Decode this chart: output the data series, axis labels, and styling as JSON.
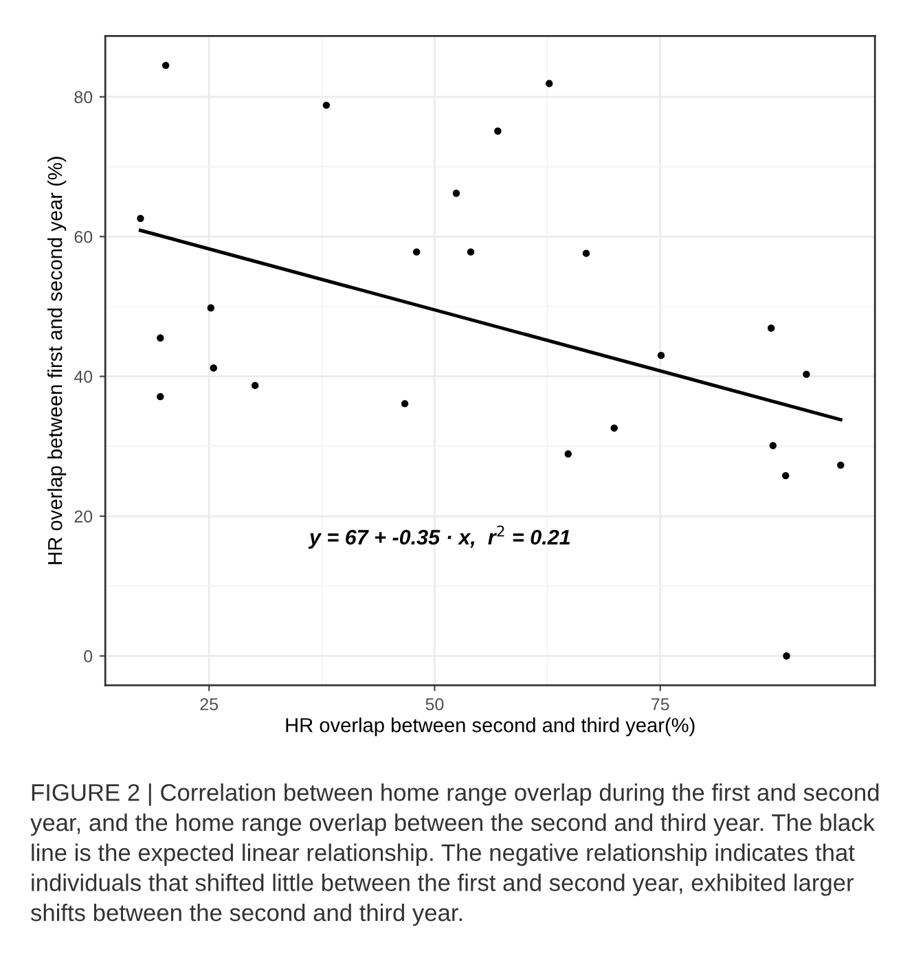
{
  "chart_data": {
    "type": "scatter",
    "xlabel": "HR overlap between second and third year(%)",
    "ylabel": "HR overlap between first and second year (%)",
    "series": [
      {
        "marker": "circle",
        "color": "#000000",
        "x": [
          20.2,
          38.0,
          17.4,
          52.4,
          48.0,
          25.2,
          19.6,
          25.5,
          19.6,
          30.1,
          46.7,
          62.7,
          57.0,
          54.0,
          66.8,
          87.3,
          75.1,
          91.2,
          69.9,
          64.8,
          87.5,
          88.9,
          95.0,
          89.0
        ],
        "values": [
          84.5,
          78.8,
          62.6,
          66.2,
          57.8,
          49.8,
          45.5,
          41.2,
          37.1,
          38.7,
          36.1,
          81.9,
          75.1,
          57.8,
          57.6,
          46.9,
          43.0,
          40.3,
          32.6,
          28.9,
          30.1,
          25.8,
          27.3,
          0
        ]
      },
      {
        "type": "line",
        "color": "#000000",
        "x": [
          17.4,
          95.0
        ],
        "values": [
          60.9,
          33.8
        ]
      }
    ],
    "xlim": [
      13.5,
      98.8
    ],
    "ylim": [
      -4.2,
      88.7
    ],
    "xticks": [
      25,
      50,
      75
    ],
    "yticks": [
      0,
      20,
      40,
      60,
      80
    ],
    "grid": true,
    "annotations": [
      "y = 67 + -0.35 · x,  r$^{2}$ = 0.21",
      "FIGURE 2 | Correlation between home range overlap during the first and second year, and the home range overlap between the second and third year. The black line is the expected linear relationship. The negative relationship indicates that individuals that shifted little between the first and second year, exhibited larger shifts between the second and third year."
    ]
  }
}
